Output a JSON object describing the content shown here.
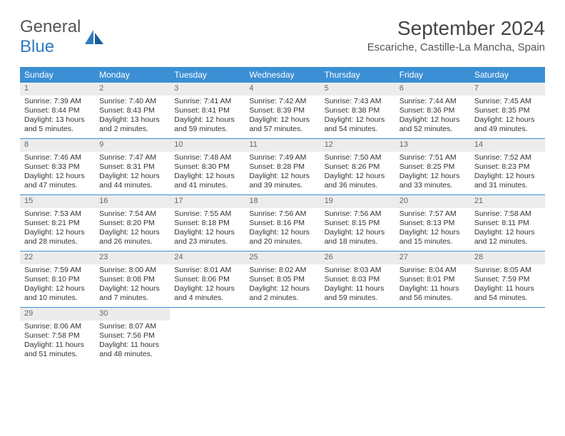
{
  "logo": {
    "line1": "General",
    "line2": "Blue"
  },
  "title": "September 2024",
  "location": "Escariche, Castille-La Mancha, Spain",
  "colors": {
    "header_bg": "#3b8fd4",
    "header_text": "#ffffff",
    "daynum_bg": "#ececec",
    "daynum_text": "#666666",
    "body_text": "#333333",
    "rule": "#3b8fd4"
  },
  "weekdays": [
    "Sunday",
    "Monday",
    "Tuesday",
    "Wednesday",
    "Thursday",
    "Friday",
    "Saturday"
  ],
  "weeks": [
    [
      {
        "n": "1",
        "sunrise": "Sunrise: 7:39 AM",
        "sunset": "Sunset: 8:44 PM",
        "daylight1": "Daylight: 13 hours",
        "daylight2": "and 5 minutes."
      },
      {
        "n": "2",
        "sunrise": "Sunrise: 7:40 AM",
        "sunset": "Sunset: 8:43 PM",
        "daylight1": "Daylight: 13 hours",
        "daylight2": "and 2 minutes."
      },
      {
        "n": "3",
        "sunrise": "Sunrise: 7:41 AM",
        "sunset": "Sunset: 8:41 PM",
        "daylight1": "Daylight: 12 hours",
        "daylight2": "and 59 minutes."
      },
      {
        "n": "4",
        "sunrise": "Sunrise: 7:42 AM",
        "sunset": "Sunset: 8:39 PM",
        "daylight1": "Daylight: 12 hours",
        "daylight2": "and 57 minutes."
      },
      {
        "n": "5",
        "sunrise": "Sunrise: 7:43 AM",
        "sunset": "Sunset: 8:38 PM",
        "daylight1": "Daylight: 12 hours",
        "daylight2": "and 54 minutes."
      },
      {
        "n": "6",
        "sunrise": "Sunrise: 7:44 AM",
        "sunset": "Sunset: 8:36 PM",
        "daylight1": "Daylight: 12 hours",
        "daylight2": "and 52 minutes."
      },
      {
        "n": "7",
        "sunrise": "Sunrise: 7:45 AM",
        "sunset": "Sunset: 8:35 PM",
        "daylight1": "Daylight: 12 hours",
        "daylight2": "and 49 minutes."
      }
    ],
    [
      {
        "n": "8",
        "sunrise": "Sunrise: 7:46 AM",
        "sunset": "Sunset: 8:33 PM",
        "daylight1": "Daylight: 12 hours",
        "daylight2": "and 47 minutes."
      },
      {
        "n": "9",
        "sunrise": "Sunrise: 7:47 AM",
        "sunset": "Sunset: 8:31 PM",
        "daylight1": "Daylight: 12 hours",
        "daylight2": "and 44 minutes."
      },
      {
        "n": "10",
        "sunrise": "Sunrise: 7:48 AM",
        "sunset": "Sunset: 8:30 PM",
        "daylight1": "Daylight: 12 hours",
        "daylight2": "and 41 minutes."
      },
      {
        "n": "11",
        "sunrise": "Sunrise: 7:49 AM",
        "sunset": "Sunset: 8:28 PM",
        "daylight1": "Daylight: 12 hours",
        "daylight2": "and 39 minutes."
      },
      {
        "n": "12",
        "sunrise": "Sunrise: 7:50 AM",
        "sunset": "Sunset: 8:26 PM",
        "daylight1": "Daylight: 12 hours",
        "daylight2": "and 36 minutes."
      },
      {
        "n": "13",
        "sunrise": "Sunrise: 7:51 AM",
        "sunset": "Sunset: 8:25 PM",
        "daylight1": "Daylight: 12 hours",
        "daylight2": "and 33 minutes."
      },
      {
        "n": "14",
        "sunrise": "Sunrise: 7:52 AM",
        "sunset": "Sunset: 8:23 PM",
        "daylight1": "Daylight: 12 hours",
        "daylight2": "and 31 minutes."
      }
    ],
    [
      {
        "n": "15",
        "sunrise": "Sunrise: 7:53 AM",
        "sunset": "Sunset: 8:21 PM",
        "daylight1": "Daylight: 12 hours",
        "daylight2": "and 28 minutes."
      },
      {
        "n": "16",
        "sunrise": "Sunrise: 7:54 AM",
        "sunset": "Sunset: 8:20 PM",
        "daylight1": "Daylight: 12 hours",
        "daylight2": "and 26 minutes."
      },
      {
        "n": "17",
        "sunrise": "Sunrise: 7:55 AM",
        "sunset": "Sunset: 8:18 PM",
        "daylight1": "Daylight: 12 hours",
        "daylight2": "and 23 minutes."
      },
      {
        "n": "18",
        "sunrise": "Sunrise: 7:56 AM",
        "sunset": "Sunset: 8:16 PM",
        "daylight1": "Daylight: 12 hours",
        "daylight2": "and 20 minutes."
      },
      {
        "n": "19",
        "sunrise": "Sunrise: 7:56 AM",
        "sunset": "Sunset: 8:15 PM",
        "daylight1": "Daylight: 12 hours",
        "daylight2": "and 18 minutes."
      },
      {
        "n": "20",
        "sunrise": "Sunrise: 7:57 AM",
        "sunset": "Sunset: 8:13 PM",
        "daylight1": "Daylight: 12 hours",
        "daylight2": "and 15 minutes."
      },
      {
        "n": "21",
        "sunrise": "Sunrise: 7:58 AM",
        "sunset": "Sunset: 8:11 PM",
        "daylight1": "Daylight: 12 hours",
        "daylight2": "and 12 minutes."
      }
    ],
    [
      {
        "n": "22",
        "sunrise": "Sunrise: 7:59 AM",
        "sunset": "Sunset: 8:10 PM",
        "daylight1": "Daylight: 12 hours",
        "daylight2": "and 10 minutes."
      },
      {
        "n": "23",
        "sunrise": "Sunrise: 8:00 AM",
        "sunset": "Sunset: 8:08 PM",
        "daylight1": "Daylight: 12 hours",
        "daylight2": "and 7 minutes."
      },
      {
        "n": "24",
        "sunrise": "Sunrise: 8:01 AM",
        "sunset": "Sunset: 8:06 PM",
        "daylight1": "Daylight: 12 hours",
        "daylight2": "and 4 minutes."
      },
      {
        "n": "25",
        "sunrise": "Sunrise: 8:02 AM",
        "sunset": "Sunset: 8:05 PM",
        "daylight1": "Daylight: 12 hours",
        "daylight2": "and 2 minutes."
      },
      {
        "n": "26",
        "sunrise": "Sunrise: 8:03 AM",
        "sunset": "Sunset: 8:03 PM",
        "daylight1": "Daylight: 11 hours",
        "daylight2": "and 59 minutes."
      },
      {
        "n": "27",
        "sunrise": "Sunrise: 8:04 AM",
        "sunset": "Sunset: 8:01 PM",
        "daylight1": "Daylight: 11 hours",
        "daylight2": "and 56 minutes."
      },
      {
        "n": "28",
        "sunrise": "Sunrise: 8:05 AM",
        "sunset": "Sunset: 7:59 PM",
        "daylight1": "Daylight: 11 hours",
        "daylight2": "and 54 minutes."
      }
    ],
    [
      {
        "n": "29",
        "sunrise": "Sunrise: 8:06 AM",
        "sunset": "Sunset: 7:58 PM",
        "daylight1": "Daylight: 11 hours",
        "daylight2": "and 51 minutes."
      },
      {
        "n": "30",
        "sunrise": "Sunrise: 8:07 AM",
        "sunset": "Sunset: 7:56 PM",
        "daylight1": "Daylight: 11 hours",
        "daylight2": "and 48 minutes."
      },
      {
        "empty": true
      },
      {
        "empty": true
      },
      {
        "empty": true
      },
      {
        "empty": true
      },
      {
        "empty": true
      }
    ]
  ]
}
